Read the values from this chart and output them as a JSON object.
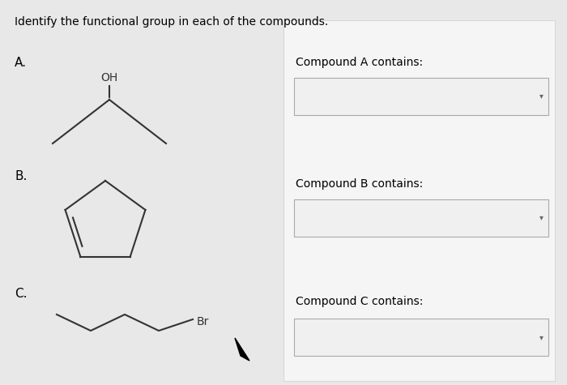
{
  "title": "Identify the functional group in each of the compounds.",
  "background_color": "#e8e8e8",
  "panel_color": "#f5f5f5",
  "labels": [
    "A.",
    "B.",
    "C."
  ],
  "compound_labels": [
    "Compound A contains:",
    "Compound B contains:",
    "Compound C contains:"
  ],
  "title_fontsize": 10,
  "label_fontsize": 11,
  "compound_label_fontsize": 10,
  "line_color": "#333333",
  "box_color": "#d0d0d0",
  "box_fill": "#f0f0f0"
}
